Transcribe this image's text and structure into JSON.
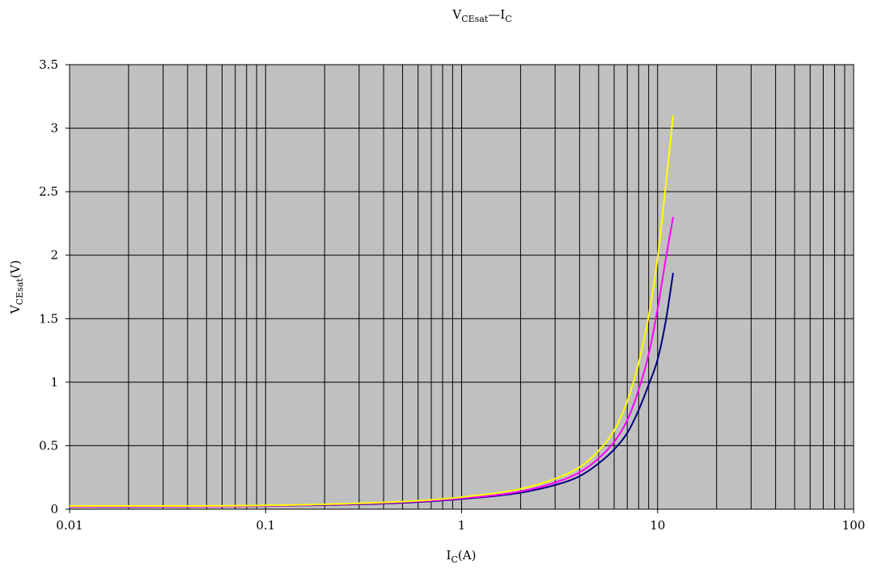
{
  "chart_data": {
    "type": "line",
    "title": {
      "main": "V",
      "sub": "CEsat",
      "rest": "—I",
      "rest_sub": "C"
    },
    "xlabel": {
      "main": "I",
      "sub": "C",
      "rest": "(A)"
    },
    "ylabel": {
      "main": "V",
      "sub": "CEsat",
      "rest": "(V)"
    },
    "x_scale": "log",
    "xlim": [
      0.01,
      100
    ],
    "ylim": [
      0,
      3.5
    ],
    "x_ticks": [
      0.01,
      0.1,
      1,
      10,
      100
    ],
    "x_tick_labels": [
      "0.01",
      "0.1",
      "1",
      "10",
      "100"
    ],
    "y_ticks": [
      0,
      0.5,
      1,
      1.5,
      2,
      2.5,
      3,
      3.5
    ],
    "y_tick_labels": [
      "0",
      "0.5",
      "1",
      "1.5",
      "2",
      "2.5",
      "3",
      "3.5"
    ],
    "grid": true,
    "plot_background": "#c0c0c0",
    "grid_color": "#000000",
    "series": [
      {
        "color": "#000080",
        "x": [
          0.01,
          0.1,
          0.5,
          1,
          2,
          3,
          4,
          5,
          6,
          7,
          8,
          9,
          10,
          11,
          12
        ],
        "y": [
          0.02,
          0.025,
          0.05,
          0.08,
          0.13,
          0.19,
          0.26,
          0.36,
          0.47,
          0.6,
          0.78,
          0.98,
          1.18,
          1.48,
          1.86
        ]
      },
      {
        "color": "#ff00ff",
        "x": [
          0.01,
          0.1,
          0.5,
          1,
          2,
          3,
          4,
          5,
          6,
          7,
          8,
          9,
          10,
          11,
          12
        ],
        "y": [
          0.02,
          0.026,
          0.055,
          0.085,
          0.14,
          0.21,
          0.29,
          0.4,
          0.53,
          0.7,
          0.94,
          1.22,
          1.58,
          1.97,
          2.3
        ]
      },
      {
        "color": "#ffff00",
        "x": [
          0.01,
          0.1,
          0.5,
          1,
          2,
          3,
          4,
          5,
          6,
          7,
          8,
          9,
          10,
          11,
          12
        ],
        "y": [
          0.025,
          0.03,
          0.06,
          0.095,
          0.16,
          0.24,
          0.33,
          0.46,
          0.62,
          0.85,
          1.15,
          1.52,
          1.98,
          2.55,
          3.1
        ]
      }
    ]
  }
}
